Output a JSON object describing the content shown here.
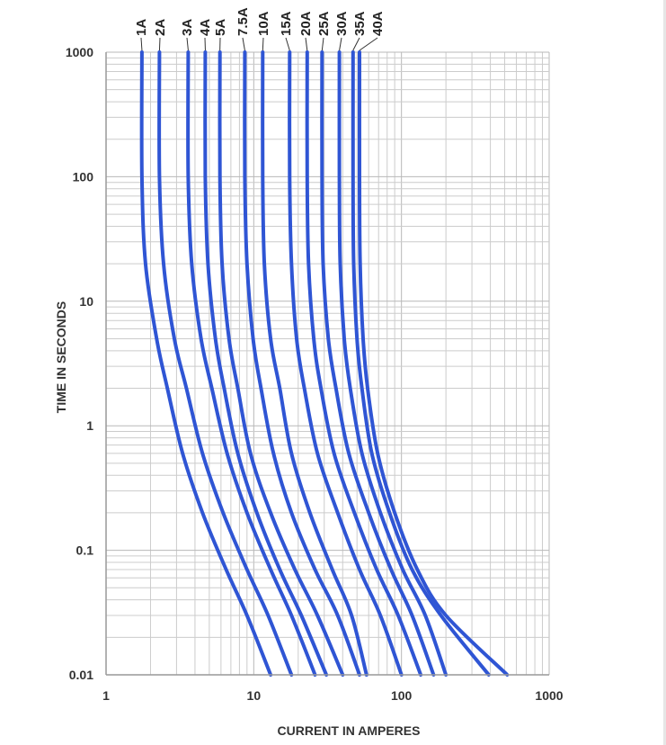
{
  "chart_data": {
    "type": "line",
    "title": "",
    "xlabel": "CURRENT IN AMPERES",
    "ylabel": "TIME IN SECONDS",
    "x_scale": "log",
    "y_scale": "log",
    "xlim": [
      1,
      1000
    ],
    "ylim": [
      0.01,
      1000
    ],
    "grid": true,
    "x_ticks": [
      {
        "value": 1,
        "label": "1"
      },
      {
        "value": 10,
        "label": "10"
      },
      {
        "value": 100,
        "label": "100"
      },
      {
        "value": 1000,
        "label": "1000"
      }
    ],
    "y_ticks": [
      {
        "value": 1000,
        "label": "1000"
      },
      {
        "value": 100,
        "label": "100"
      },
      {
        "value": 10,
        "label": "10"
      },
      {
        "value": 1,
        "label": "1"
      },
      {
        "value": 0.1,
        "label": "0.1"
      },
      {
        "value": 0.01,
        "label": "0.01"
      }
    ],
    "series_color": "#2f55d4",
    "series": [
      {
        "name": "1A",
        "points": [
          [
            1.75,
            1000
          ],
          [
            1.75,
            100
          ],
          [
            1.85,
            20
          ],
          [
            2.2,
            5
          ],
          [
            2.6,
            2
          ],
          [
            3.3,
            0.6
          ],
          [
            4.5,
            0.2
          ],
          [
            6.5,
            0.07
          ],
          [
            9.0,
            0.03
          ],
          [
            13,
            0.01
          ]
        ]
      },
      {
        "name": "2A",
        "points": [
          [
            2.3,
            1000
          ],
          [
            2.3,
            100
          ],
          [
            2.45,
            20
          ],
          [
            2.9,
            5
          ],
          [
            3.5,
            2
          ],
          [
            4.5,
            0.6
          ],
          [
            6.2,
            0.2
          ],
          [
            9.0,
            0.07
          ],
          [
            12.5,
            0.03
          ],
          [
            18,
            0.01
          ]
        ]
      },
      {
        "name": "3A",
        "points": [
          [
            3.6,
            1000
          ],
          [
            3.6,
            100
          ],
          [
            3.8,
            20
          ],
          [
            4.4,
            5
          ],
          [
            5.2,
            2
          ],
          [
            6.6,
            0.6
          ],
          [
            9.0,
            0.2
          ],
          [
            13,
            0.07
          ],
          [
            18,
            0.03
          ],
          [
            26,
            0.01
          ]
        ]
      },
      {
        "name": "4A",
        "points": [
          [
            4.7,
            1000
          ],
          [
            4.7,
            100
          ],
          [
            4.9,
            20
          ],
          [
            5.5,
            5
          ],
          [
            6.3,
            2
          ],
          [
            7.8,
            0.6
          ],
          [
            10.5,
            0.2
          ],
          [
            15,
            0.07
          ],
          [
            21,
            0.03
          ],
          [
            31,
            0.01
          ]
        ]
      },
      {
        "name": "5A",
        "points": [
          [
            5.9,
            1000
          ],
          [
            5.9,
            100
          ],
          [
            6.1,
            20
          ],
          [
            6.8,
            5
          ],
          [
            7.8,
            2
          ],
          [
            9.5,
            0.6
          ],
          [
            13,
            0.2
          ],
          [
            19,
            0.07
          ],
          [
            27,
            0.03
          ],
          [
            40,
            0.01
          ]
        ]
      },
      {
        "name": "7.5A",
        "points": [
          [
            8.7,
            1000
          ],
          [
            8.7,
            100
          ],
          [
            9.0,
            20
          ],
          [
            9.9,
            5
          ],
          [
            11.2,
            2
          ],
          [
            13.6,
            0.6
          ],
          [
            18,
            0.2
          ],
          [
            26,
            0.07
          ],
          [
            37,
            0.03
          ],
          [
            52,
            0.01
          ]
        ]
      },
      {
        "name": "10A",
        "points": [
          [
            11.5,
            1000
          ],
          [
            11.5,
            100
          ],
          [
            11.8,
            20
          ],
          [
            13,
            5
          ],
          [
            15,
            2
          ],
          [
            18,
            0.6
          ],
          [
            24,
            0.2
          ],
          [
            34,
            0.07
          ],
          [
            46,
            0.03
          ],
          [
            58,
            0.01
          ]
        ]
      },
      {
        "name": "15A",
        "points": [
          [
            17.5,
            1000
          ],
          [
            17.5,
            100
          ],
          [
            18,
            20
          ],
          [
            19.5,
            5
          ],
          [
            22,
            2
          ],
          [
            27,
            0.6
          ],
          [
            37,
            0.2
          ],
          [
            52,
            0.07
          ],
          [
            72,
            0.03
          ],
          [
            100,
            0.01
          ]
        ]
      },
      {
        "name": "20A",
        "points": [
          [
            23,
            1000
          ],
          [
            23,
            100
          ],
          [
            23.5,
            20
          ],
          [
            25.5,
            5
          ],
          [
            28.5,
            2
          ],
          [
            35,
            0.6
          ],
          [
            48,
            0.2
          ],
          [
            68,
            0.07
          ],
          [
            95,
            0.03
          ],
          [
            135,
            0.01
          ]
        ]
      },
      {
        "name": "25A",
        "points": [
          [
            29,
            1000
          ],
          [
            29,
            100
          ],
          [
            29.5,
            20
          ],
          [
            32,
            5
          ],
          [
            36,
            2
          ],
          [
            44,
            0.6
          ],
          [
            60,
            0.2
          ],
          [
            85,
            0.07
          ],
          [
            118,
            0.03
          ],
          [
            165,
            0.01
          ]
        ]
      },
      {
        "name": "30A",
        "points": [
          [
            38,
            1000
          ],
          [
            38,
            100
          ],
          [
            38.5,
            20
          ],
          [
            41,
            5
          ],
          [
            45,
            2
          ],
          [
            54,
            0.6
          ],
          [
            72,
            0.2
          ],
          [
            102,
            0.07
          ],
          [
            145,
            0.03
          ],
          [
            200,
            0.01
          ]
        ]
      },
      {
        "name": "35A",
        "points": [
          [
            47,
            1000
          ],
          [
            47,
            100
          ],
          [
            47.5,
            20
          ],
          [
            50,
            5
          ],
          [
            54,
            2
          ],
          [
            63,
            0.6
          ],
          [
            83,
            0.2
          ],
          [
            118,
            0.07
          ],
          [
            185,
            0.03
          ],
          [
            390,
            0.01
          ]
        ]
      },
      {
        "name": "40A",
        "points": [
          [
            52,
            1000
          ],
          [
            52,
            100
          ],
          [
            52.5,
            20
          ],
          [
            55,
            5
          ],
          [
            59,
            2
          ],
          [
            69,
            0.6
          ],
          [
            90,
            0.2
          ],
          [
            128,
            0.07
          ],
          [
            200,
            0.03
          ],
          [
            520,
            0.01
          ]
        ]
      }
    ]
  }
}
